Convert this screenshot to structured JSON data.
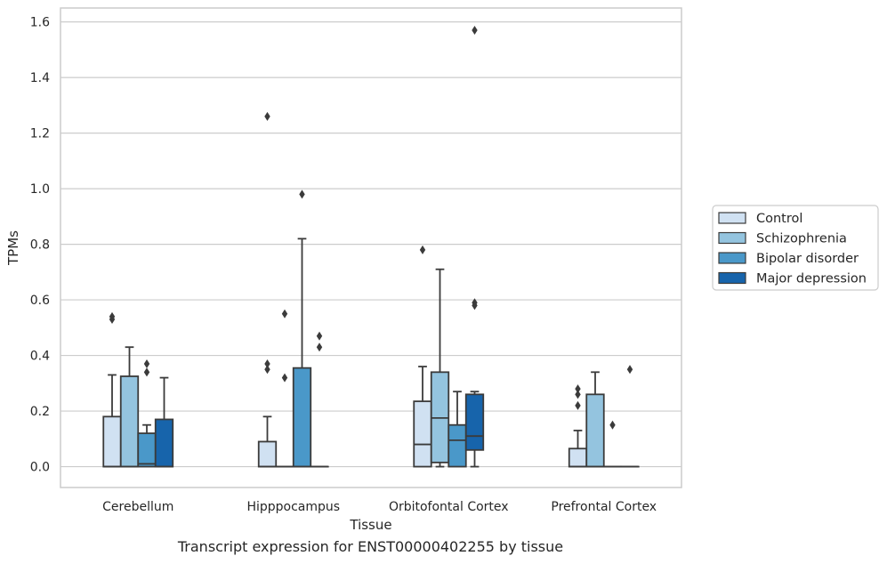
{
  "chart_data": {
    "type": "box",
    "xlabel": "Tissue",
    "ylabel": "TPMs",
    "ylim": [
      -0.075,
      1.65
    ],
    "yticks": [
      0.0,
      0.2,
      0.4,
      0.6,
      0.8,
      1.0,
      1.2,
      1.4,
      1.6
    ],
    "categories": [
      "Cerebellum",
      "Hipppocampus",
      "Orbitofontal Cortex",
      "Prefrontal Cortex"
    ],
    "grid": true,
    "legend_position": "right",
    "series": [
      {
        "name": "Control",
        "color": "#d0e1f2",
        "boxes": [
          {
            "q1": 0.0,
            "median": 0.0,
            "q3": 0.18,
            "whislo": 0.0,
            "whishi": 0.33,
            "fliers": [
              0.53,
              0.54
            ]
          },
          {
            "q1": 0.0,
            "median": 0.0,
            "q3": 0.09,
            "whislo": 0.0,
            "whishi": 0.18,
            "fliers": [
              0.35,
              0.37,
              1.26
            ]
          },
          {
            "q1": 0.0,
            "median": 0.08,
            "q3": 0.235,
            "whislo": 0.0,
            "whishi": 0.36,
            "fliers": [
              0.78
            ]
          },
          {
            "q1": 0.0,
            "median": 0.0,
            "q3": 0.065,
            "whislo": 0.0,
            "whishi": 0.13,
            "fliers": [
              0.22,
              0.26,
              0.28
            ]
          }
        ]
      },
      {
        "name": "Schizophrenia",
        "color": "#94c4df",
        "boxes": [
          {
            "q1": 0.0,
            "median": 0.0,
            "q3": 0.325,
            "whislo": 0.0,
            "whishi": 0.43,
            "fliers": []
          },
          {
            "q1": 0.0,
            "median": 0.0,
            "q3": 0.0,
            "whislo": 0.0,
            "whishi": 0.0,
            "fliers": [
              0.32,
              0.55
            ]
          },
          {
            "q1": 0.015,
            "median": 0.175,
            "q3": 0.34,
            "whislo": 0.0,
            "whishi": 0.71,
            "fliers": []
          },
          {
            "q1": 0.0,
            "median": 0.0,
            "q3": 0.26,
            "whislo": 0.0,
            "whishi": 0.34,
            "fliers": []
          }
        ]
      },
      {
        "name": "Bipolar disorder",
        "color": "#4a98c9",
        "boxes": [
          {
            "q1": 0.0,
            "median": 0.01,
            "q3": 0.12,
            "whislo": 0.0,
            "whishi": 0.15,
            "fliers": [
              0.34,
              0.37
            ]
          },
          {
            "q1": 0.0,
            "median": 0.0,
            "q3": 0.355,
            "whislo": 0.0,
            "whishi": 0.82,
            "fliers": [
              0.98
            ]
          },
          {
            "q1": 0.0,
            "median": 0.095,
            "q3": 0.15,
            "whislo": 0.0,
            "whishi": 0.27,
            "fliers": []
          },
          {
            "q1": 0.0,
            "median": 0.0,
            "q3": 0.0,
            "whislo": 0.0,
            "whishi": 0.0,
            "fliers": [
              0.15
            ]
          }
        ]
      },
      {
        "name": "Major depression",
        "color": "#1764ab",
        "boxes": [
          {
            "q1": 0.0,
            "median": 0.0,
            "q3": 0.17,
            "whislo": 0.0,
            "whishi": 0.32,
            "fliers": []
          },
          {
            "q1": 0.0,
            "median": 0.0,
            "q3": 0.0,
            "whislo": 0.0,
            "whishi": 0.0,
            "fliers": [
              0.43,
              0.47
            ]
          },
          {
            "q1": 0.06,
            "median": 0.11,
            "q3": 0.26,
            "whislo": 0.0,
            "whishi": 0.27,
            "fliers": [
              0.58,
              0.59,
              1.57
            ]
          },
          {
            "q1": 0.0,
            "median": 0.0,
            "q3": 0.0,
            "whislo": 0.0,
            "whishi": 0.0,
            "fliers": [
              0.35
            ]
          }
        ]
      }
    ]
  },
  "caption": "Transcript expression for ENST00000402255 by tissue"
}
